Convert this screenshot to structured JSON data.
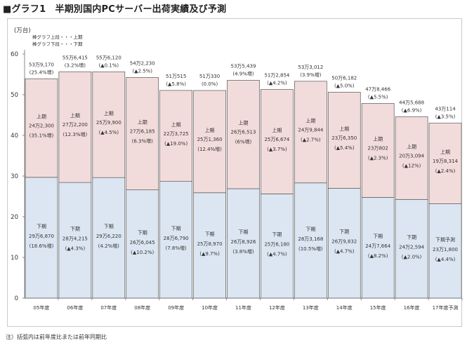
{
  "title": "■グラフ1　半期別国内PCサーバー出荷実績及び予測",
  "note": "注）括弧内は前年度比または前年同期比",
  "chart_data": {
    "type": "bar",
    "stacked": true,
    "ylabel": "(万台)",
    "ylim": [
      0,
      60
    ],
    "yticks": [
      0,
      10,
      20,
      30,
      40,
      50,
      60
    ],
    "grid": false,
    "legend": {
      "position": "top-left",
      "items": [
        "棒グラフ上段・・・上期",
        "棒グラフ下段・・・下期"
      ]
    },
    "categories": [
      "05年度",
      "06年度",
      "07年度",
      "08年度",
      "09年度",
      "10年度",
      "11年度",
      "12年度",
      "13年度",
      "14年度",
      "15年度",
      "16年度",
      "17年度予測"
    ],
    "series": [
      {
        "name": "下期",
        "color": "#dce6f2",
        "values": [
          29.687,
          28.4215,
          29.622,
          26.6045,
          28.679,
          25.897,
          26.8926,
          25.618,
          28.3168,
          26.9832,
          24.7664,
          24.2594,
          23.18
        ],
        "labels": [
          "下期",
          "下期",
          "下期",
          "下期",
          "下期",
          "下期",
          "下期",
          "下期",
          "下期",
          "下期",
          "下期",
          "下期",
          "下期予測"
        ],
        "value_labels": [
          "29万6,870",
          "28万4,215",
          "29万6,220",
          "26万6,045",
          "28万6,790",
          "25万8,970",
          "26万8,926",
          "25万6,180",
          "28万3,168",
          "26万9,832",
          "24万7,664",
          "24万2,594",
          "23万1,800"
        ],
        "change_labels": [
          "(18.6%増)",
          "(▲4.3%)",
          "(4.2%増)",
          "(▲10.2%)",
          "(7.8%増)",
          "(▲9.7%)",
          "(3.8%増)",
          "(▲4.7%)",
          "(10.5%増)",
          "(▲4.7%)",
          "(▲8.2%)",
          "(▲2.0%)",
          "(▲4.4%)"
        ]
      },
      {
        "name": "上期",
        "color": "#f2dcdb",
        "values": [
          24.23,
          27.22,
          25.99,
          27.6185,
          22.3725,
          25.136,
          26.6513,
          25.6674,
          24.9844,
          23.635,
          23.0802,
          20.3094,
          19.8314
        ],
        "labels": [
          "上期",
          "上期",
          "上期",
          "上期",
          "上期",
          "上期",
          "上期",
          "上期",
          "上期",
          "上期",
          "上期",
          "上期",
          "上期"
        ],
        "value_labels": [
          "24万2,300",
          "27万2,200",
          "25万9,900",
          "27万6,185",
          "22万3,725",
          "25万1,360",
          "26万6,513",
          "25万6,674",
          "24万9,844",
          "23万6,350",
          "23万802",
          "20万3,094",
          "19万8,314"
        ],
        "change_labels": [
          "(35.1%増)",
          "(12.3%増)",
          "(▲4.5%)",
          "(6.3%増)",
          "(▲19.0%)",
          "(12.4%増)",
          "(6%増)",
          "(▲3.7%)",
          "(▲2.7%)",
          "(▲5.4%)",
          "(▲2.3%)",
          "(▲12%)",
          "(▲2.4%)"
        ]
      }
    ],
    "totals": {
      "value_labels": [
        "53万9,170",
        "55万6,415",
        "55万6,120",
        "54万2,230",
        "51万515",
        "51万330",
        "53万5,439",
        "51万2,854",
        "53万3,012",
        "50万6,182",
        "47万8,466",
        "44万5,688",
        "43万114"
      ],
      "change_labels": [
        "(25.4%増)",
        "(3.2%増)",
        "(▲0.1%)",
        "(▲2.5%)",
        "(▲5.8%)",
        "(0.0%)",
        "(4.9%増)",
        "(▲4.2%)",
        "(3.9%増)",
        "(▲5.0%)",
        "(▲5.5%)",
        "(▲6.9%)",
        "(▲3.5%)"
      ]
    }
  }
}
